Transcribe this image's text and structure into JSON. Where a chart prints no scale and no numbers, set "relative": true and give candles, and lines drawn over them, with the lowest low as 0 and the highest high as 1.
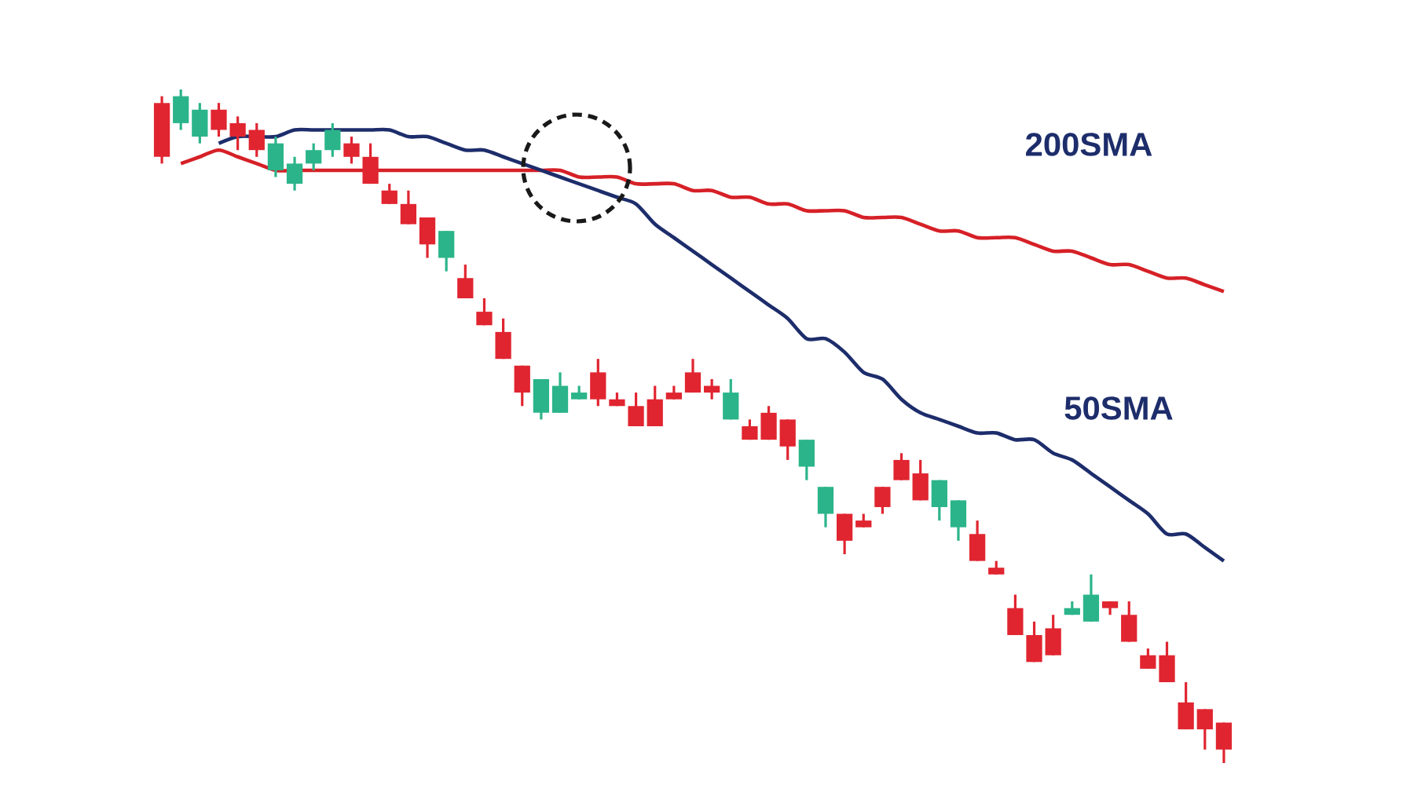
{
  "chart_data": {
    "type": "candlestick",
    "relative": true,
    "categories": [
      null,
      null,
      null,
      null,
      null,
      null,
      null,
      null,
      null,
      null,
      null,
      null,
      null,
      null,
      null,
      null,
      null,
      null,
      null,
      null,
      null,
      null,
      null,
      null,
      null,
      null,
      null,
      null,
      null,
      null,
      null,
      null,
      null,
      null,
      null,
      null,
      null,
      null,
      null,
      null,
      null,
      null,
      null,
      null,
      null,
      null,
      null,
      null,
      null,
      null,
      null,
      null,
      null,
      null,
      null,
      null,
      null
    ],
    "ohlc": [
      [
        0.98,
        0.99,
        0.89,
        0.9
      ],
      [
        0.95,
        1.0,
        0.94,
        0.99
      ],
      [
        0.93,
        0.98,
        0.92,
        0.97
      ],
      [
        0.97,
        0.98,
        0.93,
        0.94
      ],
      [
        0.95,
        0.96,
        0.91,
        0.93
      ],
      [
        0.94,
        0.95,
        0.9,
        0.91
      ],
      [
        0.88,
        0.93,
        0.87,
        0.92
      ],
      [
        0.86,
        0.9,
        0.85,
        0.89
      ],
      [
        0.89,
        0.92,
        0.88,
        0.91
      ],
      [
        0.91,
        0.95,
        0.9,
        0.94
      ],
      [
        0.92,
        0.93,
        0.89,
        0.9
      ],
      [
        0.9,
        0.92,
        0.86,
        0.86
      ],
      [
        0.85,
        0.86,
        0.83,
        0.83
      ],
      [
        0.83,
        0.85,
        0.8,
        0.8
      ],
      [
        0.81,
        0.81,
        0.75,
        0.77
      ],
      [
        0.75,
        0.79,
        0.73,
        0.79
      ],
      [
        0.72,
        0.74,
        0.69,
        0.69
      ],
      [
        0.67,
        0.69,
        0.65,
        0.65
      ],
      [
        0.64,
        0.66,
        0.6,
        0.6
      ],
      [
        0.59,
        0.59,
        0.53,
        0.55
      ],
      [
        0.52,
        0.57,
        0.51,
        0.57
      ],
      [
        0.52,
        0.58,
        0.52,
        0.56
      ],
      [
        0.54,
        0.56,
        0.54,
        0.55
      ],
      [
        0.58,
        0.6,
        0.53,
        0.54
      ],
      [
        0.54,
        0.55,
        0.53,
        0.53
      ],
      [
        0.53,
        0.55,
        0.5,
        0.5
      ],
      [
        0.54,
        0.56,
        0.5,
        0.5
      ],
      [
        0.55,
        0.56,
        0.54,
        0.54
      ],
      [
        0.58,
        0.6,
        0.55,
        0.55
      ],
      [
        0.56,
        0.57,
        0.54,
        0.55
      ],
      [
        0.51,
        0.57,
        0.51,
        0.55
      ],
      [
        0.5,
        0.51,
        0.48,
        0.48
      ],
      [
        0.52,
        0.53,
        0.48,
        0.48
      ],
      [
        0.51,
        0.51,
        0.45,
        0.47
      ],
      [
        0.44,
        0.48,
        0.42,
        0.48
      ],
      [
        0.37,
        0.41,
        0.35,
        0.41
      ],
      [
        0.37,
        0.37,
        0.31,
        0.33
      ],
      [
        0.36,
        0.37,
        0.35,
        0.35
      ],
      [
        0.41,
        0.41,
        0.37,
        0.38
      ],
      [
        0.45,
        0.46,
        0.42,
        0.42
      ],
      [
        0.43,
        0.45,
        0.39,
        0.39
      ],
      [
        0.38,
        0.42,
        0.36,
        0.42
      ],
      [
        0.35,
        0.39,
        0.33,
        0.39
      ],
      [
        0.34,
        0.36,
        0.3,
        0.3
      ],
      [
        0.29,
        0.3,
        0.28,
        0.28
      ],
      [
        0.23,
        0.25,
        0.19,
        0.19
      ],
      [
        0.19,
        0.21,
        0.15,
        0.15
      ],
      [
        0.2,
        0.22,
        0.16,
        0.16
      ],
      [
        0.22,
        0.24,
        0.22,
        0.23
      ],
      [
        0.21,
        0.28,
        0.21,
        0.25
      ],
      [
        0.24,
        0.24,
        0.22,
        0.23
      ],
      [
        0.22,
        0.24,
        0.18,
        0.18
      ],
      [
        0.16,
        0.17,
        0.14,
        0.14
      ],
      [
        0.16,
        0.18,
        0.12,
        0.12
      ],
      [
        0.09,
        0.12,
        0.05,
        0.05
      ],
      [
        0.08,
        0.08,
        0.02,
        0.05
      ],
      [
        0.06,
        0.06,
        0.0,
        0.02
      ]
    ],
    "colors": [
      "#e02530",
      "#2bb48a",
      "#2bb48a",
      "#e02530",
      "#e02530",
      "#e02530",
      "#2bb48a",
      "#2bb48a",
      "#2bb48a",
      "#2bb48a",
      "#e02530",
      "#e02530",
      "#e02530",
      "#e02530",
      "#e02530",
      "#2bb48a",
      "#e02530",
      "#e02530",
      "#e02530",
      "#e02530",
      "#2bb48a",
      "#2bb48a",
      "#2bb48a",
      "#e02530",
      "#e02530",
      "#e02530",
      "#e02530",
      "#e02530",
      "#e02530",
      "#e02530",
      "#2bb48a",
      "#e02530",
      "#e02530",
      "#e02530",
      "#2bb48a",
      "#2bb48a",
      "#e02530",
      "#e02530",
      "#e02530",
      "#e02530",
      "#e02530",
      "#2bb48a",
      "#2bb48a",
      "#e02530",
      "#e02530",
      "#e02530",
      "#e02530",
      "#e02530",
      "#2bb48a",
      "#2bb48a",
      "#e02530",
      "#e02530",
      "#e02530",
      "#e02530",
      "#e02530",
      "#e02530",
      "#e02530"
    ],
    "series": [
      {
        "name": "200SMA",
        "type": "line",
        "color": "#d62027",
        "values": [
          null,
          0.89,
          0.9,
          0.91,
          0.9,
          0.89,
          0.88,
          0.88,
          0.88,
          0.88,
          0.88,
          0.88,
          0.88,
          0.88,
          0.88,
          0.88,
          0.88,
          0.88,
          0.88,
          0.88,
          0.88,
          0.88,
          0.87,
          0.87,
          0.87,
          0.86,
          0.86,
          0.86,
          0.85,
          0.85,
          0.84,
          0.84,
          0.83,
          0.83,
          0.82,
          0.82,
          0.82,
          0.81,
          0.81,
          0.81,
          0.8,
          0.79,
          0.79,
          0.78,
          0.78,
          0.78,
          0.77,
          0.76,
          0.76,
          0.75,
          0.74,
          0.74,
          0.73,
          0.72,
          0.72,
          0.71,
          0.7
        ]
      },
      {
        "name": "50SMA",
        "type": "line",
        "color": "#1d2d6b",
        "values": [
          null,
          null,
          null,
          0.92,
          0.93,
          0.93,
          0.93,
          0.94,
          0.94,
          0.94,
          0.94,
          0.94,
          0.94,
          0.93,
          0.93,
          0.92,
          0.91,
          0.91,
          0.9,
          0.89,
          0.88,
          0.87,
          0.86,
          0.85,
          0.84,
          0.83,
          0.8,
          0.78,
          0.76,
          0.74,
          0.72,
          0.7,
          0.68,
          0.66,
          0.63,
          0.63,
          0.61,
          0.58,
          0.57,
          0.54,
          0.52,
          0.51,
          0.5,
          0.49,
          0.49,
          0.48,
          0.48,
          0.46,
          0.45,
          0.43,
          0.41,
          0.39,
          0.37,
          0.34,
          0.34,
          0.32,
          0.3
        ]
      }
    ]
  }
}
